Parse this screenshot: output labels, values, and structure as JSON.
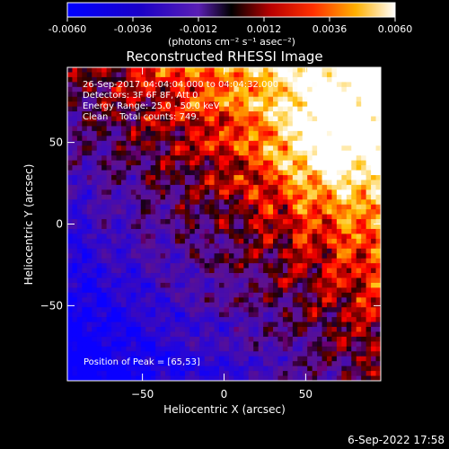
{
  "chart_data": {
    "type": "heatmap",
    "title": "Reconstructed RHESSI Image",
    "xlabel": "Heliocentric X (arcsec)",
    "ylabel": "Heliocentric Y (arcsec)",
    "xlim": [
      -96,
      96
    ],
    "ylim": [
      -96,
      96
    ],
    "x_ticks": [
      -50,
      0,
      50
    ],
    "y_ticks": [
      -50,
      0,
      50
    ],
    "colorbar": {
      "min": -0.006,
      "max": 0.006,
      "ticks": [
        "-0.0060",
        "-0.0036",
        "-0.0012",
        "0.0012",
        "0.0036",
        "0.0060"
      ],
      "unit_label": "(photons cm⁻² s⁻¹ asec⁻²)"
    },
    "annotations": [
      "26-Sep-2017 04:04:04.000 to 04:04:32.000",
      "Detectors: 3F 6F 8F, Att 0",
      "Energy Range: 25.0 - 50.0 keV",
      "Clean    Total counts: 749."
    ],
    "peak_label": "Position of Peak = [65,53]",
    "peak": [
      65,
      53
    ],
    "timestamp": "6-Sep-2022 17:58"
  }
}
